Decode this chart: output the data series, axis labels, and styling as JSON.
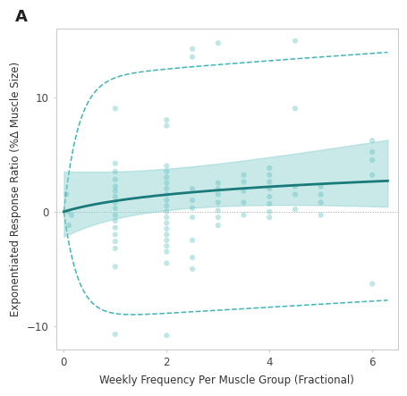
{
  "title_label": "A",
  "xlabel": "Weekly Frequency Per Muscle Group (Fractional)",
  "ylabel": "Exponentiated Response Ratio (%Δ Muscle Size)",
  "xlim": [
    -0.15,
    6.5
  ],
  "ylim": [
    -12,
    16
  ],
  "yticks": [
    -10,
    0,
    10
  ],
  "xticks": [
    0,
    2,
    4,
    6
  ],
  "teal_dark": "#1a7a7a",
  "teal_mid": "#2aadad",
  "teal_light": "#80cccc",
  "teal_scatter": "#4db8b8",
  "bg_color": "#ffffff",
  "scatter_points": [
    [
      0.05,
      1.5
    ],
    [
      0.08,
      0.0
    ],
    [
      0.1,
      -1.2
    ],
    [
      0.15,
      -0.3
    ],
    [
      1.0,
      9.0
    ],
    [
      1.0,
      4.2
    ],
    [
      1.0,
      3.5
    ],
    [
      1.0,
      2.8
    ],
    [
      1.0,
      2.2
    ],
    [
      1.0,
      1.8
    ],
    [
      1.0,
      1.3
    ],
    [
      1.0,
      0.8
    ],
    [
      1.0,
      0.3
    ],
    [
      1.0,
      -0.3
    ],
    [
      1.0,
      -0.8
    ],
    [
      1.0,
      -1.4
    ],
    [
      1.0,
      -2.0
    ],
    [
      1.0,
      -2.6
    ],
    [
      1.0,
      -3.2
    ],
    [
      1.0,
      -4.8
    ],
    [
      1.0,
      -10.7
    ],
    [
      2.0,
      8.0
    ],
    [
      2.0,
      7.5
    ],
    [
      2.0,
      4.0
    ],
    [
      2.0,
      3.5
    ],
    [
      2.0,
      3.0
    ],
    [
      2.0,
      2.5
    ],
    [
      2.0,
      2.0
    ],
    [
      2.0,
      1.5
    ],
    [
      2.0,
      1.0
    ],
    [
      2.0,
      0.5
    ],
    [
      2.0,
      0.0
    ],
    [
      2.0,
      -0.5
    ],
    [
      2.0,
      -1.0
    ],
    [
      2.0,
      -1.5
    ],
    [
      2.0,
      -2.0
    ],
    [
      2.0,
      -2.5
    ],
    [
      2.0,
      -3.0
    ],
    [
      2.0,
      -3.5
    ],
    [
      2.0,
      -4.5
    ],
    [
      2.0,
      -10.8
    ],
    [
      2.5,
      14.2
    ],
    [
      2.5,
      13.5
    ],
    [
      2.5,
      2.0
    ],
    [
      2.5,
      1.0
    ],
    [
      2.5,
      0.3
    ],
    [
      2.5,
      -0.5
    ],
    [
      2.5,
      -2.5
    ],
    [
      2.5,
      -4.0
    ],
    [
      2.5,
      -5.0
    ],
    [
      3.0,
      14.7
    ],
    [
      3.0,
      2.5
    ],
    [
      3.0,
      2.0
    ],
    [
      3.0,
      1.5
    ],
    [
      3.0,
      0.8
    ],
    [
      3.0,
      0.1
    ],
    [
      3.0,
      -0.5
    ],
    [
      3.0,
      -1.2
    ],
    [
      3.5,
      3.2
    ],
    [
      3.5,
      2.6
    ],
    [
      3.5,
      1.8
    ],
    [
      3.5,
      0.8
    ],
    [
      3.5,
      -0.3
    ],
    [
      4.0,
      3.8
    ],
    [
      4.0,
      3.2
    ],
    [
      4.0,
      2.6
    ],
    [
      4.0,
      2.0
    ],
    [
      4.0,
      1.3
    ],
    [
      4.0,
      0.7
    ],
    [
      4.0,
      0.0
    ],
    [
      4.0,
      -0.5
    ],
    [
      4.5,
      14.9
    ],
    [
      4.5,
      9.0
    ],
    [
      4.5,
      2.2
    ],
    [
      4.5,
      1.5
    ],
    [
      4.5,
      0.2
    ],
    [
      5.0,
      2.2
    ],
    [
      5.0,
      1.5
    ],
    [
      5.0,
      0.8
    ],
    [
      5.0,
      -0.3
    ],
    [
      6.0,
      6.2
    ],
    [
      6.0,
      5.2
    ],
    [
      6.0,
      4.5
    ],
    [
      6.0,
      3.2
    ],
    [
      6.0,
      -6.3
    ]
  ]
}
